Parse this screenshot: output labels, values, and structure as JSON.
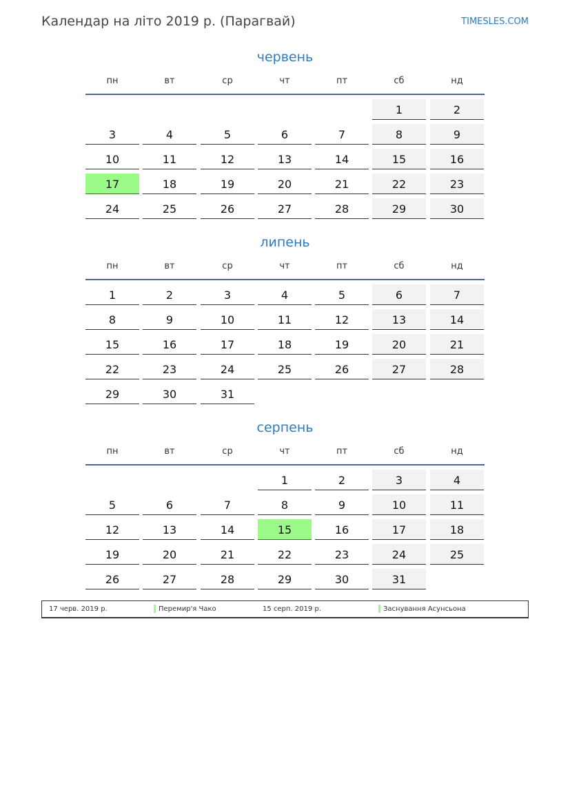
{
  "header": {
    "title": "Календар на літо 2019 р. (Парагвай)",
    "brand": "TIMESLES.COM"
  },
  "weekdays": [
    "пн",
    "вт",
    "ср",
    "чт",
    "пт",
    "сб",
    "нд"
  ],
  "colors": {
    "accent": "#2f7bbf",
    "holiday": "#9cfa88",
    "weekend": "#f2f2f2"
  },
  "months": [
    {
      "name": "червень",
      "weeks": [
        [
          null,
          null,
          null,
          null,
          null,
          1,
          2
        ],
        [
          3,
          4,
          5,
          6,
          7,
          8,
          9
        ],
        [
          10,
          11,
          12,
          13,
          14,
          15,
          16
        ],
        [
          17,
          18,
          19,
          20,
          21,
          22,
          23
        ],
        [
          24,
          25,
          26,
          27,
          28,
          29,
          30
        ]
      ],
      "holidays": [
        17
      ]
    },
    {
      "name": "липень",
      "weeks": [
        [
          1,
          2,
          3,
          4,
          5,
          6,
          7
        ],
        [
          8,
          9,
          10,
          11,
          12,
          13,
          14
        ],
        [
          15,
          16,
          17,
          18,
          19,
          20,
          21
        ],
        [
          22,
          23,
          24,
          25,
          26,
          27,
          28
        ],
        [
          29,
          30,
          31,
          null,
          null,
          null,
          null
        ]
      ],
      "holidays": []
    },
    {
      "name": "серпень",
      "weeks": [
        [
          null,
          null,
          null,
          1,
          2,
          3,
          4
        ],
        [
          5,
          6,
          7,
          8,
          9,
          10,
          11
        ],
        [
          12,
          13,
          14,
          15,
          16,
          17,
          18
        ],
        [
          19,
          20,
          21,
          22,
          23,
          24,
          25
        ],
        [
          26,
          27,
          28,
          29,
          30,
          31,
          null
        ]
      ],
      "holidays": [
        15
      ]
    }
  ],
  "legend": [
    {
      "date": "17 черв. 2019 р.",
      "name": "Перемир'я Чако"
    },
    {
      "date": "15 серп. 2019 р.",
      "name": "Заснування Асунсьона"
    }
  ]
}
